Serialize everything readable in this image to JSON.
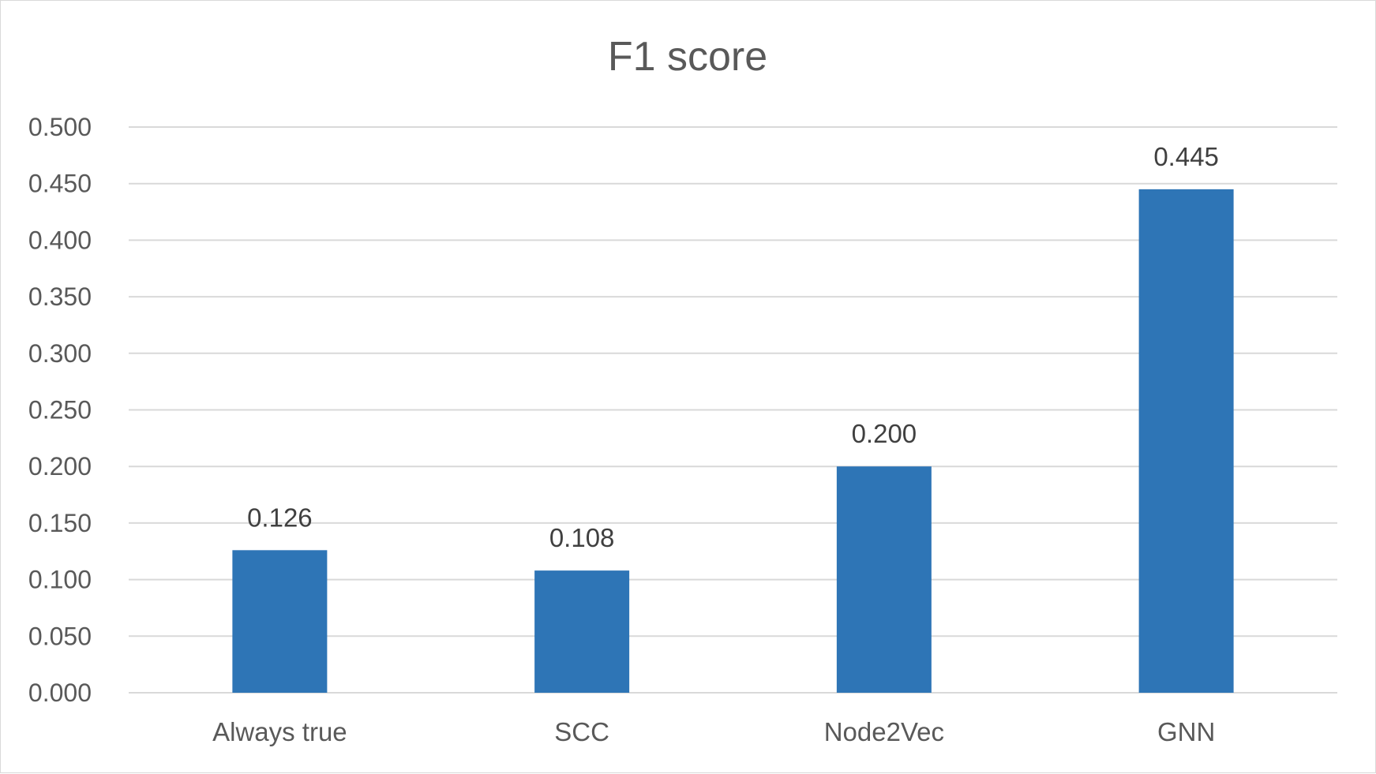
{
  "chart_data": {
    "type": "bar",
    "title": "F1 score",
    "xlabel": "",
    "ylabel": "",
    "categories": [
      "Always true",
      "SCC",
      "Node2Vec",
      "GNN"
    ],
    "values": [
      0.126,
      0.108,
      0.2,
      0.445
    ],
    "data_labels": [
      "0.126",
      "0.108",
      "0.200",
      "0.445"
    ],
    "ylim": [
      0,
      0.5
    ],
    "y_ticks": [
      "0.000",
      "0.050",
      "0.100",
      "0.150",
      "0.200",
      "0.250",
      "0.300",
      "0.350",
      "0.400",
      "0.450",
      "0.500"
    ],
    "grid": true,
    "legend": "none",
    "colors": {
      "bar": "#2e75b6",
      "grid": "#d9d9d9",
      "title": "#595959",
      "axis_text": "#595959",
      "data_label": "#404040"
    }
  }
}
